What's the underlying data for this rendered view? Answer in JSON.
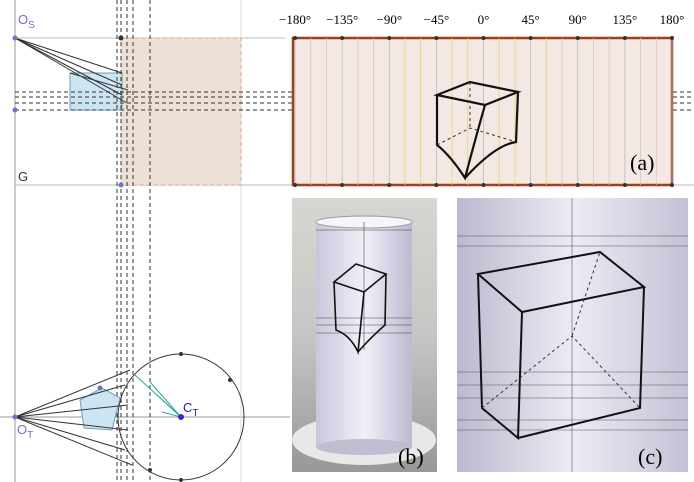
{
  "points": {
    "os": {
      "main": "O",
      "sub": "S"
    },
    "g": "G",
    "ot": {
      "main": "O",
      "sub": "T"
    },
    "ct": {
      "main": "C",
      "sub": "T"
    }
  },
  "panel_a": {
    "ticks": [
      "−180°",
      "−135°",
      "−90°",
      "−45°",
      "0°",
      "45°",
      "90°",
      "135°",
      "180°"
    ],
    "label": "(a)"
  },
  "panel_b": {
    "label": "(b)"
  },
  "panel_c": {
    "label": "(c)"
  }
}
